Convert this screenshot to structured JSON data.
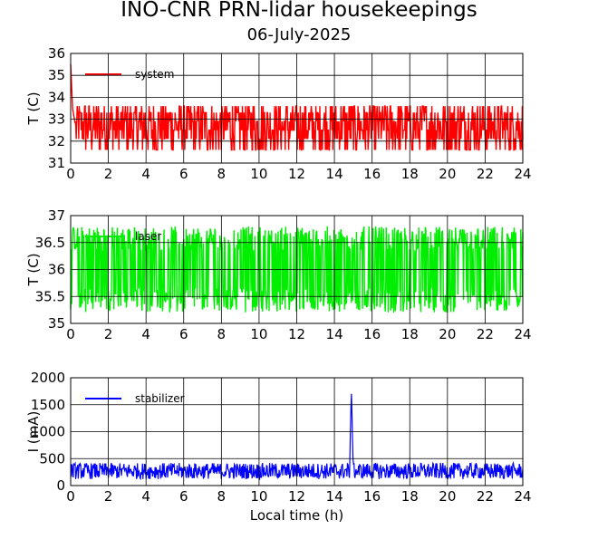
{
  "title": "INO-CNR PRN-lidar housekeepings",
  "subtitle": "06-July-2025",
  "chart_data": [
    {
      "type": "line",
      "ylabel": "T (C)",
      "xlabel": "",
      "xlim": [
        0,
        24
      ],
      "ylim": [
        31,
        36
      ],
      "xticks": [
        "0",
        "2",
        "4",
        "6",
        "8",
        "10",
        "12",
        "14",
        "16",
        "18",
        "20",
        "22",
        "24"
      ],
      "yticks": [
        "31",
        "32",
        "33",
        "34",
        "35",
        "36"
      ],
      "grid": true,
      "legend": "top-left",
      "series": [
        {
          "name": "system",
          "color": "#ff0000",
          "x": [
            0,
            0.05,
            0.1,
            0.2,
            0.3,
            1,
            2,
            3,
            4,
            5,
            6,
            7,
            8,
            9,
            10,
            11,
            12,
            13,
            14,
            15,
            16,
            17,
            18,
            19,
            20,
            21,
            22,
            23,
            24
          ],
          "y": [
            35.5,
            34.5,
            33.5,
            33,
            32.5,
            32.9,
            32.9,
            32.9,
            32.9,
            32.8,
            32.8,
            32.9,
            32.9,
            32.9,
            32.8,
            32.8,
            32.9,
            32.9,
            32.9,
            32.8,
            32.8,
            32.8,
            32.9,
            32.9,
            32.8,
            32.8,
            32.9,
            32.9,
            32.8
          ],
          "band_low": 31.5,
          "band_high": 33.7
        }
      ]
    },
    {
      "type": "line",
      "ylabel": "T (C)",
      "xlabel": "",
      "xlim": [
        0,
        24
      ],
      "ylim": [
        35,
        37
      ],
      "xticks": [
        "0",
        "2",
        "4",
        "6",
        "8",
        "10",
        "12",
        "14",
        "16",
        "18",
        "20",
        "22",
        "24"
      ],
      "yticks": [
        "35",
        "35.5",
        "36",
        "36.5",
        "37"
      ],
      "grid": true,
      "legend": "top-left",
      "series": [
        {
          "name": "laser",
          "color": "#00ee00",
          "x": [
            0,
            2,
            4,
            6,
            8,
            10,
            12,
            14,
            16,
            18,
            20,
            22,
            24
          ],
          "y": [
            36,
            36,
            36,
            36,
            36,
            36,
            36,
            36,
            36,
            36,
            36,
            36,
            36
          ],
          "band_low": 35.2,
          "band_high": 36.8
        }
      ]
    },
    {
      "type": "line",
      "ylabel": "I (mA)",
      "xlabel": "Local time (h)",
      "xlim": [
        0,
        24
      ],
      "ylim": [
        0,
        2000
      ],
      "xticks": [
        "0",
        "2",
        "4",
        "6",
        "8",
        "10",
        "12",
        "14",
        "16",
        "18",
        "20",
        "22",
        "24"
      ],
      "yticks": [
        "0",
        "500",
        "1000",
        "1500",
        "2000"
      ],
      "grid": true,
      "legend": "top-left",
      "series": [
        {
          "name": "stabilizer",
          "color": "#0000ff",
          "x": [
            0,
            2,
            4,
            6,
            8,
            10,
            12,
            14,
            14.8,
            14.9,
            14.95,
            15.0,
            15.1,
            16,
            18,
            20,
            22,
            24
          ],
          "y": [
            250,
            250,
            250,
            250,
            250,
            250,
            250,
            250,
            250,
            1800,
            1050,
            300,
            250,
            250,
            250,
            250,
            250,
            250
          ],
          "band_low": 120,
          "band_high": 420
        }
      ]
    }
  ]
}
